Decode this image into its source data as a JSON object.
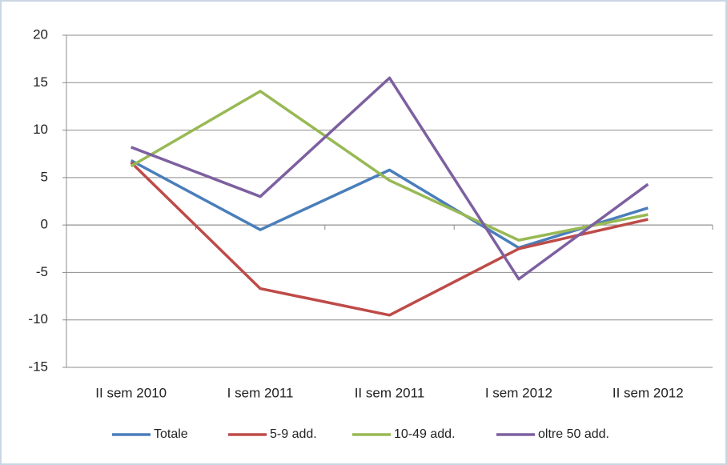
{
  "chart_data": {
    "type": "line",
    "categories": [
      "II sem 2010",
      "I sem 2011",
      "II sem 2011",
      "I sem 2012",
      "II sem 2012"
    ],
    "series": [
      {
        "name": "Totale",
        "color": "#4a7ebb",
        "values": [
          6.8,
          -0.5,
          5.8,
          -2.4,
          1.8
        ]
      },
      {
        "name": "5-9 add.",
        "color": "#be4b48",
        "values": [
          6.6,
          -6.7,
          -9.5,
          -2.5,
          0.6
        ]
      },
      {
        "name": "10-49 add.",
        "color": "#98b954",
        "values": [
          6.2,
          14.1,
          4.7,
          -1.6,
          1.1
        ]
      },
      {
        "name": "oltre 50 add.",
        "color": "#7d60a0",
        "values": [
          8.2,
          3.0,
          15.5,
          -5.7,
          4.3
        ]
      }
    ],
    "ylim": [
      -15,
      20
    ],
    "yticks": [
      -15,
      -10,
      -5,
      0,
      5,
      10,
      15,
      20
    ],
    "grid": true,
    "legend": "bottom"
  }
}
